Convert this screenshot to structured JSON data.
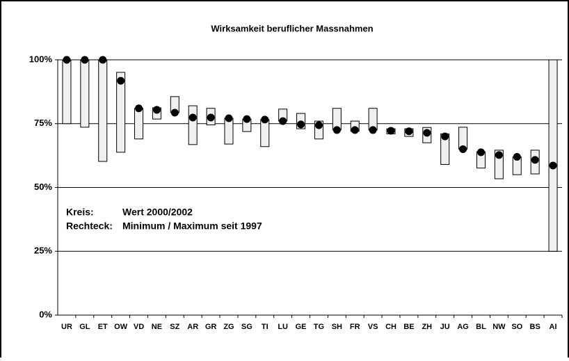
{
  "chart_data": {
    "type": "range_dot",
    "title": "Wirksamkeit beruflicher Massnahmen",
    "categories": [
      "UR",
      "GL",
      "ET",
      "OW",
      "VD",
      "NE",
      "SZ",
      "AR",
      "GR",
      "ZG",
      "SG",
      "TI",
      "LU",
      "GE",
      "TG",
      "SH",
      "FR",
      "VS",
      "CH",
      "BE",
      "ZH",
      "JU",
      "AG",
      "BL",
      "NW",
      "SO",
      "BS",
      "AI"
    ],
    "values": [
      100,
      100,
      100,
      91.8,
      81,
      80.4,
      79.3,
      77.4,
      77.4,
      77.1,
      76.8,
      76.6,
      76,
      74.7,
      74.4,
      72.5,
      72.5,
      72.5,
      72.2,
      72,
      71.4,
      70,
      65,
      63.8,
      62.7,
      62,
      60.8,
      58.6
    ],
    "min": [
      75,
      73.6,
      60.2,
      63.8,
      69,
      76.8,
      79.3,
      66.8,
      74.5,
      67,
      71.9,
      66,
      76,
      73,
      69,
      72.5,
      72,
      72.5,
      71,
      70,
      67.5,
      59,
      65,
      57.6,
      53.4,
      55,
      55.3,
      25
    ],
    "max": [
      100,
      100,
      100,
      95.1,
      81,
      81.2,
      85.6,
      82,
      81,
      77.1,
      76.8,
      76.6,
      80.7,
      79,
      76,
      81,
      76,
      81,
      73,
      73,
      73.5,
      71,
      73.6,
      64,
      64.6,
      62,
      64.6,
      100
    ],
    "dot_color": "#000000",
    "box_color": "#f0f0f0",
    "annotations": [
      [
        "Kreis:",
        "Wert 2000/2002"
      ],
      [
        "Rechteck:",
        "Minimum / Maximum seit 1997"
      ]
    ],
    "ylim": [
      0,
      100
    ],
    "yticks": [
      {
        "value": 0,
        "label": "0%"
      },
      {
        "value": 25,
        "label": "25%"
      },
      {
        "value": 50,
        "label": "50%"
      },
      {
        "value": 75,
        "label": "75%"
      },
      {
        "value": 100,
        "label": "100%"
      }
    ],
    "grid": true
  }
}
